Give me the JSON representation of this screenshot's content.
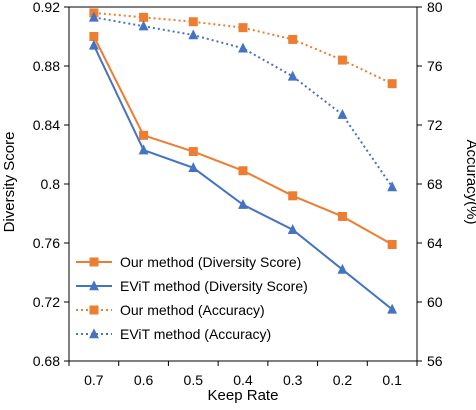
{
  "chart_data": {
    "type": "line",
    "xlabel": "Keep Rate",
    "ylabel_left": "Diversity Score",
    "ylabel_right": "Accuracy(%)",
    "categories": [
      "0.7",
      "0.6",
      "0.5",
      "0.4",
      "0.3",
      "0.2",
      "0.1"
    ],
    "ylim_left": [
      0.68,
      0.92
    ],
    "ylim_right": [
      56,
      80
    ],
    "yticks_left": [
      "0.68",
      "0.72",
      "0.76",
      "0.8",
      "0.84",
      "0.88",
      "0.92"
    ],
    "yticks_right": [
      "56",
      "60",
      "64",
      "68",
      "72",
      "76",
      "80"
    ],
    "grid": false,
    "legend_position": "bottom-left",
    "series": [
      {
        "name": "Our method (Diversity Score)",
        "axis": "left",
        "color": "#ED7D31",
        "marker": "square",
        "line": "solid",
        "values": [
          0.9,
          0.833,
          0.822,
          0.809,
          0.792,
          0.778,
          0.759
        ]
      },
      {
        "name": "EViT method (Diversity Score)",
        "axis": "left",
        "color": "#4472C4",
        "marker": "triangle",
        "line": "solid",
        "values": [
          0.894,
          0.823,
          0.811,
          0.786,
          0.769,
          0.742,
          0.715
        ]
      },
      {
        "name": "Our method (Accuracy)",
        "axis": "right",
        "color": "#ED7D31",
        "marker": "square",
        "line": "dotted",
        "values": [
          79.6,
          79.3,
          79.0,
          78.6,
          77.8,
          76.4,
          74.8
        ]
      },
      {
        "name": "EViT method (Accuracy)",
        "axis": "right",
        "color": "#4472C4",
        "marker": "triangle",
        "line": "dotted",
        "values": [
          79.3,
          78.7,
          78.1,
          77.2,
          75.3,
          72.7,
          67.8
        ]
      }
    ]
  }
}
